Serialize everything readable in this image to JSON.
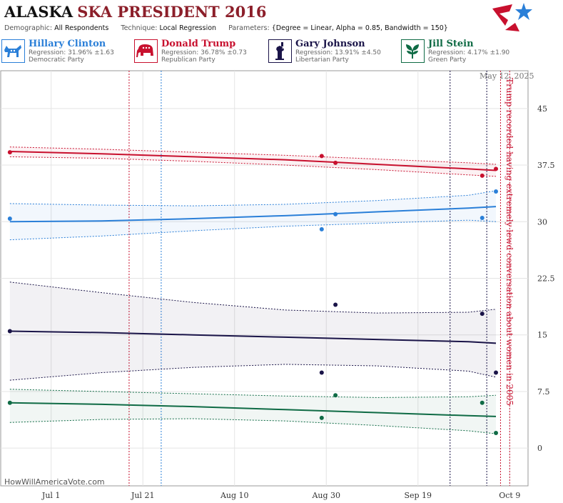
{
  "header": {
    "state": "ALASKA",
    "title_rest": "SKA PRESIDENT 2016",
    "params": [
      {
        "key": "Demographic:",
        "value": "All Respondents"
      },
      {
        "key": "Technique:",
        "value": "Local Regression"
      },
      {
        "key": "Parameters:",
        "value": "{Degree = Linear, Alpha = 0.85, Bandwidth = 150}"
      }
    ]
  },
  "candidates": [
    {
      "name": "Hillary Clinton",
      "regression": "Regression: 31.96% ±1.63",
      "party": "Democratic Party",
      "color": "#2a7fd8",
      "icon": "donkey-icon"
    },
    {
      "name": "Donald Trump",
      "regression": "Regression: 36.78% ±0.73",
      "party": "Republican Party",
      "color": "#c8102e",
      "icon": "elephant-icon"
    },
    {
      "name": "Gary Johnson",
      "regression": "Regression: 13.91% ±4.50",
      "party": "Libertarian Party",
      "color": "#1a1448",
      "icon": "statue-of-liberty-icon"
    },
    {
      "name": "Jill Stein",
      "regression": "Regression: 4.17% ±1.90",
      "party": "Green Party",
      "color": "#0f6b45",
      "icon": "plant-icon"
    }
  ],
  "datestamp": "May 12, 2025",
  "credit": "HowWillAmericaVote.com",
  "annotation": "Trump recorded having extremely lewd conversation about women in 2005",
  "chart_data": {
    "type": "line",
    "x_range": [
      "2016-06-20",
      "2016-10-13"
    ],
    "ylim": [
      -5,
      50
    ],
    "yticks": [
      0,
      7.5,
      15,
      22.5,
      30,
      37.5,
      45
    ],
    "ytick_labels": [
      "0",
      "7.5",
      "15",
      "22.5",
      "30",
      "37.5",
      "45"
    ],
    "xticks": [
      "2016-07-01",
      "2016-07-21",
      "2016-08-10",
      "2016-08-30",
      "2016-09-19",
      "2016-10-09"
    ],
    "xtick_labels": [
      "Jul 1",
      "Jul 21",
      "Aug 10",
      "Aug 30",
      "Sep 19",
      "Oct 9"
    ],
    "grid": true,
    "legend": "top",
    "events": [
      {
        "date": "2016-07-18",
        "color": "#c8102e"
      },
      {
        "date": "2016-07-25",
        "color": "#2a7fd8"
      },
      {
        "date": "2016-09-26",
        "color": "#1a1448"
      },
      {
        "date": "2016-10-04",
        "color": "#1a1448"
      },
      {
        "date": "2016-10-07",
        "color": "#c8102e"
      },
      {
        "date": "2016-10-09",
        "color": "#c8102e"
      }
    ],
    "series": [
      {
        "name": "Donald Trump",
        "color": "#c8102e",
        "x": [
          "2016-06-22",
          "2016-07-12",
          "2016-08-01",
          "2016-08-21",
          "2016-09-10",
          "2016-09-30",
          "2016-10-06"
        ],
        "values": [
          39.3,
          39.0,
          38.6,
          38.2,
          37.6,
          37.0,
          36.8
        ],
        "upper": [
          39.9,
          39.6,
          39.2,
          38.8,
          38.3,
          37.8,
          37.6
        ],
        "lower": [
          38.6,
          38.4,
          38.0,
          37.5,
          36.9,
          36.2,
          36.0
        ],
        "points": [
          {
            "x": "2016-06-22",
            "y": 39.2
          },
          {
            "x": "2016-08-29",
            "y": 38.7
          },
          {
            "x": "2016-09-01",
            "y": 37.8
          },
          {
            "x": "2016-10-03",
            "y": 36.1
          },
          {
            "x": "2016-10-06",
            "y": 37.0
          }
        ]
      },
      {
        "name": "Hillary Clinton",
        "color": "#2a7fd8",
        "x": [
          "2016-06-22",
          "2016-07-12",
          "2016-08-01",
          "2016-08-21",
          "2016-09-10",
          "2016-09-30",
          "2016-10-06"
        ],
        "values": [
          30.0,
          30.1,
          30.4,
          30.8,
          31.3,
          31.8,
          32.0
        ],
        "upper": [
          32.4,
          32.2,
          32.1,
          32.3,
          32.8,
          33.5,
          34.1
        ],
        "lower": [
          27.6,
          28.1,
          28.8,
          29.4,
          29.8,
          30.2,
          30.0
        ],
        "points": [
          {
            "x": "2016-06-22",
            "y": 30.4
          },
          {
            "x": "2016-08-29",
            "y": 29.0
          },
          {
            "x": "2016-09-01",
            "y": 31.0
          },
          {
            "x": "2016-10-03",
            "y": 30.5
          },
          {
            "x": "2016-10-06",
            "y": 34.0
          }
        ]
      },
      {
        "name": "Gary Johnson",
        "color": "#1a1448",
        "x": [
          "2016-06-22",
          "2016-07-12",
          "2016-08-01",
          "2016-08-21",
          "2016-09-10",
          "2016-09-30",
          "2016-10-06"
        ],
        "values": [
          15.5,
          15.3,
          15.0,
          14.7,
          14.4,
          14.1,
          13.9
        ],
        "upper": [
          22.0,
          20.6,
          19.3,
          18.3,
          17.9,
          18.0,
          18.4
        ],
        "lower": [
          9.0,
          10.0,
          10.7,
          11.1,
          10.9,
          10.2,
          9.4
        ],
        "points": [
          {
            "x": "2016-06-22",
            "y": 15.5
          },
          {
            "x": "2016-08-29",
            "y": 10.0
          },
          {
            "x": "2016-09-01",
            "y": 19.0
          },
          {
            "x": "2016-10-03",
            "y": 17.8
          },
          {
            "x": "2016-10-06",
            "y": 10.0
          }
        ]
      },
      {
        "name": "Jill Stein",
        "color": "#0f6b45",
        "x": [
          "2016-06-22",
          "2016-07-12",
          "2016-08-01",
          "2016-08-21",
          "2016-09-10",
          "2016-09-30",
          "2016-10-06"
        ],
        "values": [
          6.0,
          5.8,
          5.5,
          5.1,
          4.7,
          4.3,
          4.2
        ],
        "upper": [
          7.8,
          7.5,
          7.2,
          6.9,
          6.7,
          6.8,
          7.0
        ],
        "lower": [
          3.4,
          3.8,
          3.9,
          3.6,
          3.0,
          2.3,
          1.9
        ],
        "points": [
          {
            "x": "2016-06-22",
            "y": 6.0
          },
          {
            "x": "2016-08-29",
            "y": 4.0
          },
          {
            "x": "2016-09-01",
            "y": 7.0
          },
          {
            "x": "2016-10-03",
            "y": 6.0
          },
          {
            "x": "2016-10-06",
            "y": 2.0
          }
        ]
      }
    ]
  }
}
